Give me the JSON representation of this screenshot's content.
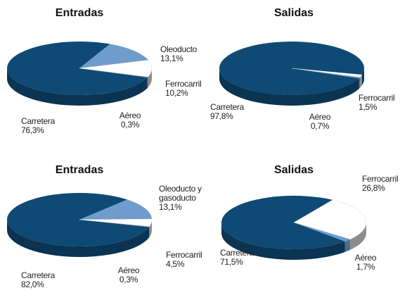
{
  "chart_data": [
    {
      "type": "pie",
      "title": "Entradas",
      "categories": [
        "Carretera",
        "Oleoducto",
        "Ferrocarril",
        "Aéreo"
      ],
      "values": [
        76.3,
        13.1,
        10.2,
        0.3
      ],
      "value_labels": [
        "76,3%",
        "13,1%",
        "10,2%",
        "0,3%"
      ],
      "colors": [
        "#0e4a74",
        "#6f9cca",
        "#ffffff",
        "#8c8c8c"
      ]
    },
    {
      "type": "pie",
      "title": "Salidas",
      "categories": [
        "Carretera",
        "Ferrocarril",
        "Aéreo"
      ],
      "values": [
        97.8,
        1.5,
        0.7
      ],
      "value_labels": [
        "97,8%",
        "1,5%",
        "0,7%"
      ],
      "colors": [
        "#0e4a74",
        "#ffffff",
        "#6f9cca"
      ]
    },
    {
      "type": "pie",
      "title": "Entradas",
      "categories": [
        "Carretera",
        "Oleoducto y gasoducto",
        "Ferrocarril",
        "Aéreo"
      ],
      "values": [
        82.0,
        13.1,
        4.5,
        0.3
      ],
      "value_labels": [
        "82,0%",
        "13,1%",
        "4,5%",
        "0,3%"
      ],
      "colors": [
        "#0e4a74",
        "#6f9cca",
        "#ffffff",
        "#8c8c8c"
      ]
    },
    {
      "type": "pie",
      "title": "Salidas",
      "categories": [
        "Carretera",
        "Ferrocarril",
        "Aéreo"
      ],
      "values": [
        71.5,
        26.8,
        1.7
      ],
      "value_labels": [
        "71,5%",
        "26,8%",
        "1,7%"
      ],
      "colors": [
        "#0e4a74",
        "#ffffff",
        "#6f9cca"
      ]
    }
  ]
}
